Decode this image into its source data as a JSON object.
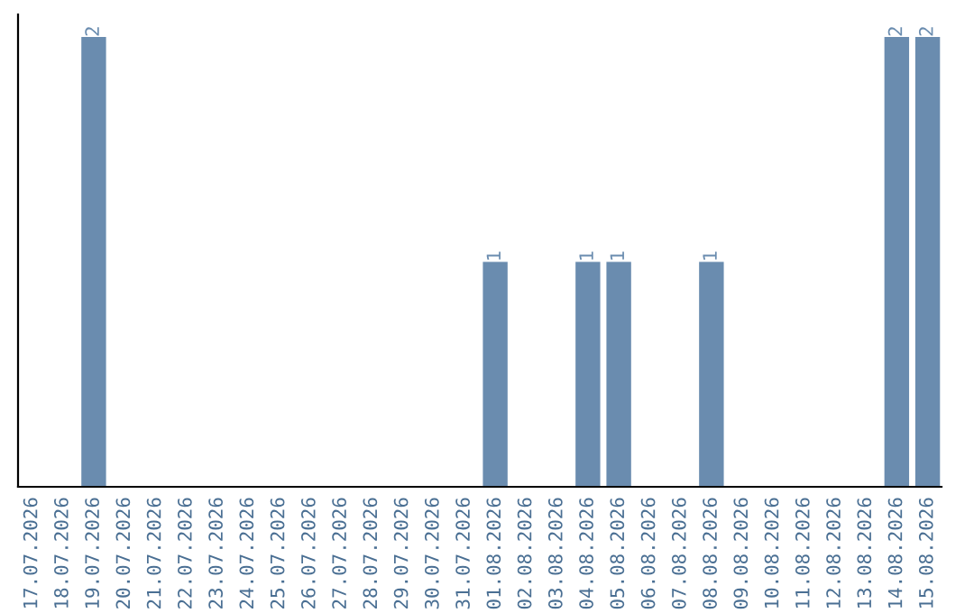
{
  "chart_data": {
    "type": "bar",
    "categories": [
      "17.07.2026",
      "18.07.2026",
      "19.07.2026",
      "20.07.2026",
      "21.07.2026",
      "22.07.2026",
      "23.07.2026",
      "24.07.2026",
      "25.07.2026",
      "26.07.2026",
      "27.07.2026",
      "28.07.2026",
      "29.07.2026",
      "30.07.2026",
      "31.07.2026",
      "01.08.2026",
      "02.08.2026",
      "03.08.2026",
      "04.08.2026",
      "05.08.2026",
      "06.08.2026",
      "07.08.2026",
      "08.08.2026",
      "09.08.2026",
      "10.08.2026",
      "11.08.2026",
      "12.08.2026",
      "13.08.2026",
      "14.08.2026",
      "15.08.2026"
    ],
    "values": [
      0,
      0,
      2,
      0,
      0,
      0,
      0,
      0,
      0,
      0,
      0,
      0,
      0,
      0,
      0,
      1,
      0,
      0,
      1,
      1,
      0,
      0,
      1,
      0,
      0,
      0,
      0,
      0,
      2,
      2
    ],
    "value_labels": [
      null,
      null,
      "2",
      null,
      null,
      null,
      null,
      null,
      null,
      null,
      null,
      null,
      null,
      null,
      null,
      "1",
      null,
      null,
      "1",
      "1",
      null,
      null,
      "1",
      null,
      null,
      null,
      null,
      null,
      "2",
      "2"
    ],
    "color": "#6a8caf",
    "relative": false,
    "grid": false,
    "legend": false
  }
}
